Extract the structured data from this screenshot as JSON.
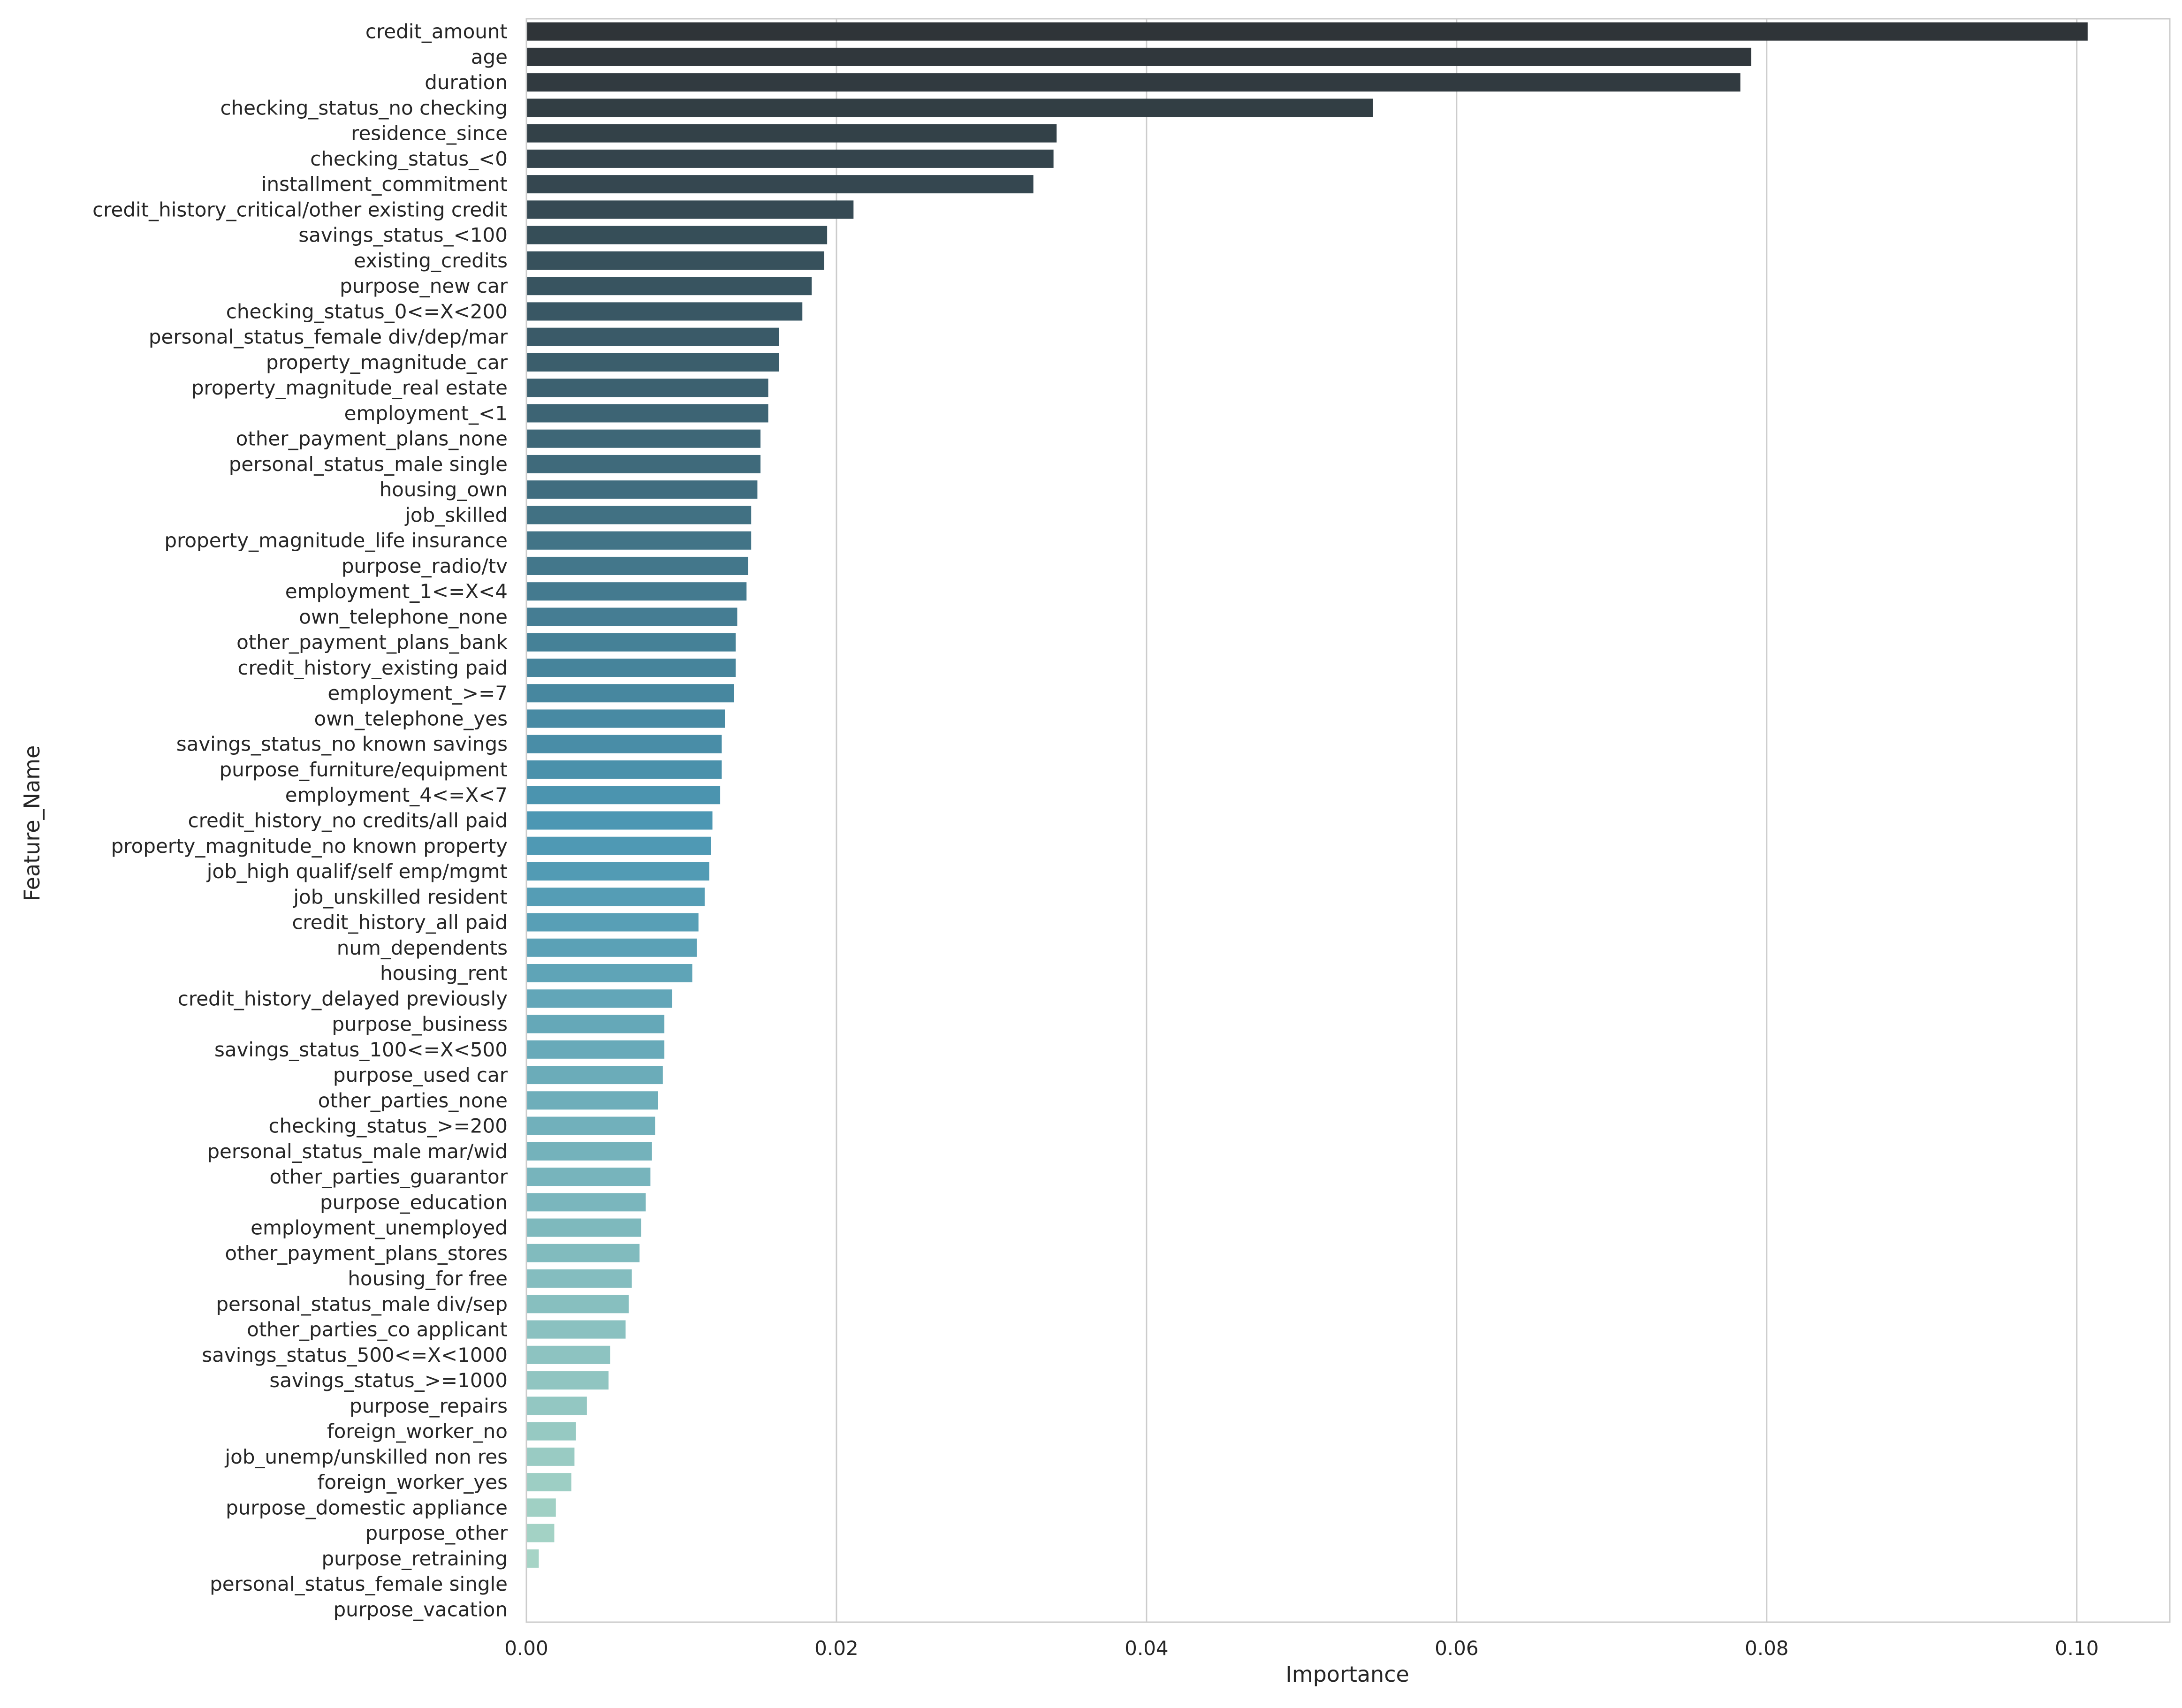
{
  "chart_data": {
    "type": "bar",
    "orientation": "horizontal",
    "title": "",
    "xlabel": "Importance",
    "ylabel": "Feature_Name",
    "xlim": [
      0.0,
      0.106
    ],
    "xticks": [
      0.0,
      0.02,
      0.04,
      0.06,
      0.08,
      0.1
    ],
    "xtick_labels": [
      "0.00",
      "0.02",
      "0.04",
      "0.06",
      "0.08",
      "0.10"
    ],
    "grid": "vertical",
    "palette": {
      "start": "#2f3438",
      "mid": "#4c97b3",
      "end": "#acd8c7"
    },
    "categories": [
      "credit_amount",
      "age",
      "duration",
      "checking_status_no checking",
      "residence_since",
      "checking_status_<0",
      "installment_commitment",
      "credit_history_critical/other existing credit",
      "savings_status_<100",
      "existing_credits",
      "purpose_new car",
      "checking_status_0<=X<200",
      "personal_status_female div/dep/mar",
      "property_magnitude_car",
      "property_magnitude_real estate",
      "employment_<1",
      "other_payment_plans_none",
      "personal_status_male single",
      "housing_own",
      "job_skilled",
      "property_magnitude_life insurance",
      "purpose_radio/tv",
      "employment_1<=X<4",
      "own_telephone_none",
      "other_payment_plans_bank",
      "credit_history_existing paid",
      "employment_>=7",
      "own_telephone_yes",
      "savings_status_no known savings",
      "purpose_furniture/equipment",
      "employment_4<=X<7",
      "credit_history_no credits/all paid",
      "property_magnitude_no known property",
      "job_high qualif/self emp/mgmt",
      "job_unskilled resident",
      "credit_history_all paid",
      "num_dependents",
      "housing_rent",
      "credit_history_delayed previously",
      "purpose_business",
      "savings_status_100<=X<500",
      "purpose_used car",
      "other_parties_none",
      "checking_status_>=200",
      "personal_status_male mar/wid",
      "other_parties_guarantor",
      "purpose_education",
      "employment_unemployed",
      "other_payment_plans_stores",
      "housing_for free",
      "personal_status_male div/sep",
      "other_parties_co applicant",
      "savings_status_500<=X<1000",
      "savings_status_>=1000",
      "purpose_repairs",
      "foreign_worker_no",
      "job_unemp/unskilled non res",
      "foreign_worker_yes",
      "purpose_domestic appliance",
      "purpose_other",
      "purpose_retraining",
      "personal_status_female single",
      "purpose_vacation"
    ],
    "values": [
      0.1007,
      0.079,
      0.0783,
      0.0546,
      0.0342,
      0.034,
      0.0327,
      0.0211,
      0.0194,
      0.0192,
      0.0184,
      0.0178,
      0.0163,
      0.0163,
      0.0156,
      0.0156,
      0.0151,
      0.0151,
      0.0149,
      0.0145,
      0.0145,
      0.0143,
      0.0142,
      0.0136,
      0.0135,
      0.0135,
      0.0134,
      0.0128,
      0.0126,
      0.0126,
      0.0125,
      0.012,
      0.0119,
      0.0118,
      0.0115,
      0.0111,
      0.011,
      0.0107,
      0.0094,
      0.0089,
      0.0089,
      0.0088,
      0.0085,
      0.0083,
      0.0081,
      0.008,
      0.0077,
      0.0074,
      0.0073,
      0.0068,
      0.0066,
      0.0064,
      0.0054,
      0.0053,
      0.0039,
      0.0032,
      0.0031,
      0.0029,
      0.0019,
      0.0018,
      0.0008,
      0.0,
      0.0
    ]
  }
}
